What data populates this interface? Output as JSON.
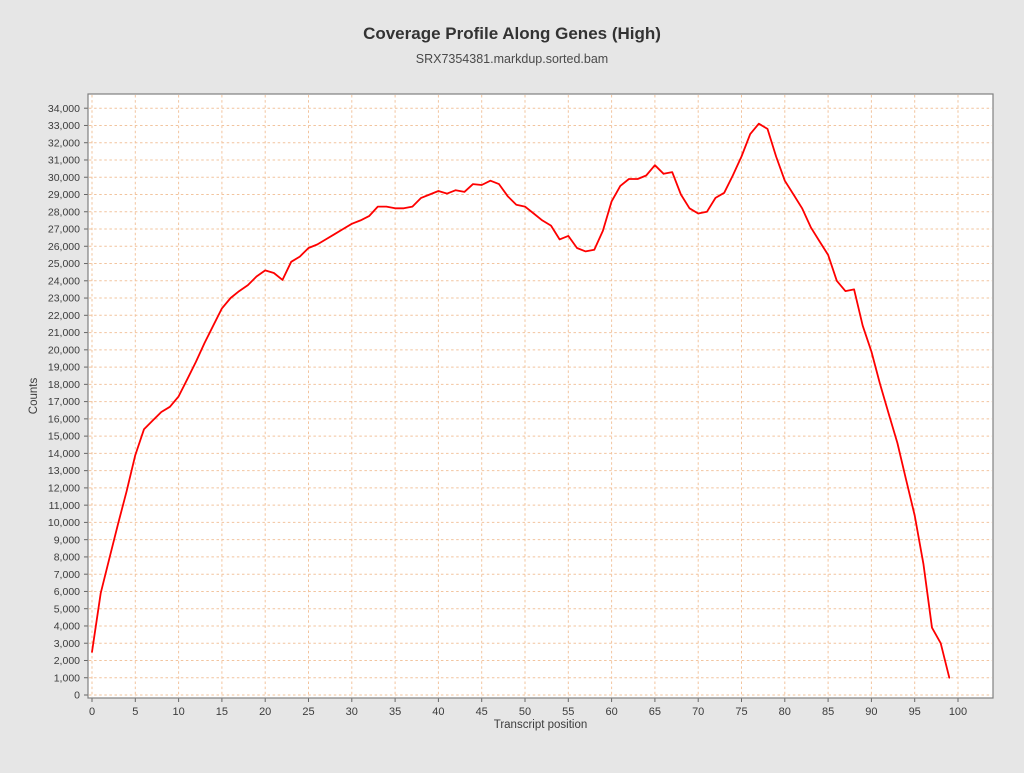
{
  "chart_data": {
    "type": "line",
    "title": "Coverage Profile Along Genes (High)",
    "subtitle": "SRX7354381.markdup.sorted.bam",
    "xlabel": "Transcript position",
    "ylabel": "Counts",
    "series_name": "SRX7354381.markdup.sorted.bam",
    "x": [
      0,
      1,
      2,
      3,
      4,
      5,
      6,
      7,
      8,
      9,
      10,
      11,
      12,
      13,
      14,
      15,
      16,
      17,
      18,
      19,
      20,
      21,
      22,
      23,
      24,
      25,
      26,
      27,
      28,
      29,
      30,
      31,
      32,
      33,
      34,
      35,
      36,
      37,
      38,
      39,
      40,
      41,
      42,
      43,
      44,
      45,
      46,
      47,
      48,
      49,
      50,
      51,
      52,
      53,
      54,
      55,
      56,
      57,
      58,
      59,
      60,
      61,
      62,
      63,
      64,
      65,
      66,
      67,
      68,
      69,
      70,
      71,
      72,
      73,
      74,
      75,
      76,
      77,
      78,
      79,
      80,
      81,
      82,
      83,
      84,
      85,
      86,
      87,
      88,
      89,
      90,
      91,
      92,
      93,
      94,
      95,
      96,
      97,
      98,
      99
    ],
    "values": [
      2500,
      5900,
      7900,
      9900,
      11800,
      13900,
      15400,
      15900,
      16400,
      16700,
      17300,
      18300,
      19300,
      20400,
      21400,
      22400,
      23000,
      23400,
      23750,
      24250,
      24600,
      24450,
      24050,
      25100,
      25400,
      25900,
      26100,
      26400,
      26700,
      27000,
      27300,
      27500,
      27750,
      28300,
      28300,
      28200,
      28200,
      28300,
      28800,
      29000,
      29200,
      29050,
      29250,
      29150,
      29600,
      29550,
      29800,
      29600,
      28900,
      28400,
      28300,
      27900,
      27500,
      27200,
      26400,
      26600,
      25900,
      25700,
      25800,
      26900,
      28600,
      29500,
      29900,
      29900,
      30100,
      30700,
      30200,
      30300,
      29000,
      28200,
      27900,
      28000,
      28800,
      29100,
      30100,
      31200,
      32500,
      33100,
      32800,
      31200,
      29800,
      29000,
      28200,
      27100,
      26300,
      25500,
      24000,
      23400,
      23500,
      21400,
      19900,
      18000,
      16300,
      14600,
      12500,
      10400,
      7600,
      3900,
      3000,
      1000
    ],
    "x_ticks": [
      0,
      5,
      10,
      15,
      20,
      25,
      30,
      35,
      40,
      45,
      50,
      55,
      60,
      65,
      70,
      75,
      80,
      85,
      90,
      95,
      100
    ],
    "y_ticks": {
      "min": 0,
      "max": 34000,
      "step": 1000,
      "format": "thousands-comma"
    },
    "xlim": [
      -0.5,
      104
    ],
    "ylim": [
      -200,
      34800
    ],
    "grid": true,
    "grid_style": "dashed",
    "legend": false,
    "colors": {
      "page_bg": "#e6e6e6",
      "plot_bg": "#ffffff",
      "grid": "#f2c49e",
      "line": "#fe0000",
      "border": "#808080",
      "tick": "#666666",
      "text": "#3c3c3c"
    }
  }
}
